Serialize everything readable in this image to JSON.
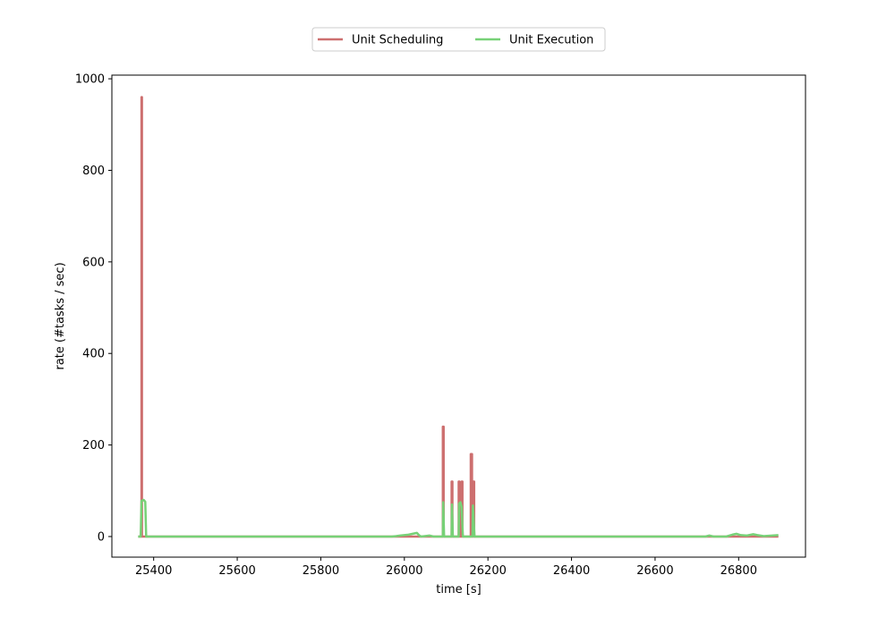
{
  "chart_data": {
    "type": "line",
    "title": "",
    "xlabel": "time [s]",
    "ylabel": "rate (#tasks / sec)",
    "xlim": [
      25300,
      26960
    ],
    "ylim": [
      -45,
      1008
    ],
    "x_ticks": [
      25400,
      25600,
      25800,
      26000,
      26200,
      26400,
      26600,
      26800
    ],
    "y_ticks": [
      0,
      200,
      400,
      600,
      800,
      1000
    ],
    "grid": false,
    "legend_position": "top-center",
    "series": [
      {
        "name": "Unit Scheduling",
        "color": "#cd6f6f",
        "points": [
          [
            25363,
            0
          ],
          [
            25371,
            0
          ],
          [
            25371,
            960
          ],
          [
            25372,
            960
          ],
          [
            25372,
            0
          ],
          [
            26092,
            0
          ],
          [
            26092,
            240
          ],
          [
            26094,
            240
          ],
          [
            26094,
            0
          ],
          [
            26113,
            0
          ],
          [
            26113,
            120
          ],
          [
            26115,
            120
          ],
          [
            26115,
            0
          ],
          [
            26130,
            0
          ],
          [
            26130,
            120
          ],
          [
            26132,
            120
          ],
          [
            26132,
            0
          ],
          [
            26137,
            0
          ],
          [
            26137,
            120
          ],
          [
            26139,
            120
          ],
          [
            26139,
            0
          ],
          [
            26159,
            0
          ],
          [
            26159,
            180
          ],
          [
            26162,
            180
          ],
          [
            26162,
            0
          ],
          [
            26165,
            0
          ],
          [
            26165,
            120
          ],
          [
            26167,
            120
          ],
          [
            26167,
            0
          ],
          [
            26895,
            0
          ]
        ]
      },
      {
        "name": "Unit Execution",
        "color": "#77d177",
        "points": [
          [
            25363,
            0
          ],
          [
            25369,
            0
          ],
          [
            25371,
            78
          ],
          [
            25376,
            80
          ],
          [
            25380,
            76
          ],
          [
            25382,
            0
          ],
          [
            25970,
            0
          ],
          [
            25980,
            1
          ],
          [
            25990,
            2
          ],
          [
            26000,
            3
          ],
          [
            26010,
            4
          ],
          [
            26020,
            6
          ],
          [
            26030,
            8
          ],
          [
            26035,
            3
          ],
          [
            26040,
            0
          ],
          [
            26060,
            2
          ],
          [
            26070,
            0
          ],
          [
            26092,
            0
          ],
          [
            26093,
            75
          ],
          [
            26095,
            0
          ],
          [
            26113,
            0
          ],
          [
            26114,
            70
          ],
          [
            26116,
            0
          ],
          [
            26130,
            0
          ],
          [
            26131,
            72
          ],
          [
            26134,
            75
          ],
          [
            26137,
            65
          ],
          [
            26140,
            0
          ],
          [
            26163,
            0
          ],
          [
            26164,
            68
          ],
          [
            26168,
            0
          ],
          [
            26720,
            0
          ],
          [
            26730,
            2
          ],
          [
            26740,
            0
          ],
          [
            26770,
            0
          ],
          [
            26785,
            4
          ],
          [
            26795,
            6
          ],
          [
            26805,
            3
          ],
          [
            26820,
            2
          ],
          [
            26835,
            5
          ],
          [
            26845,
            3
          ],
          [
            26860,
            1
          ],
          [
            26880,
            2
          ],
          [
            26895,
            3
          ]
        ]
      }
    ]
  }
}
